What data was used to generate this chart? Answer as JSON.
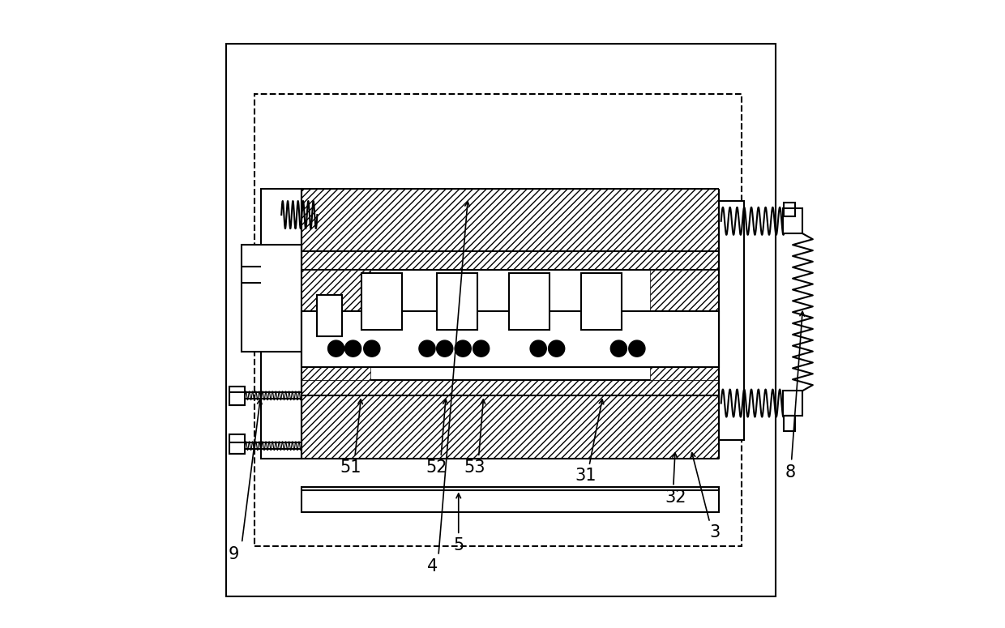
{
  "bg_color": "#ffffff",
  "line_color": "#000000",
  "lw": 1.5,
  "fig_width": 12.4,
  "fig_height": 7.75
}
